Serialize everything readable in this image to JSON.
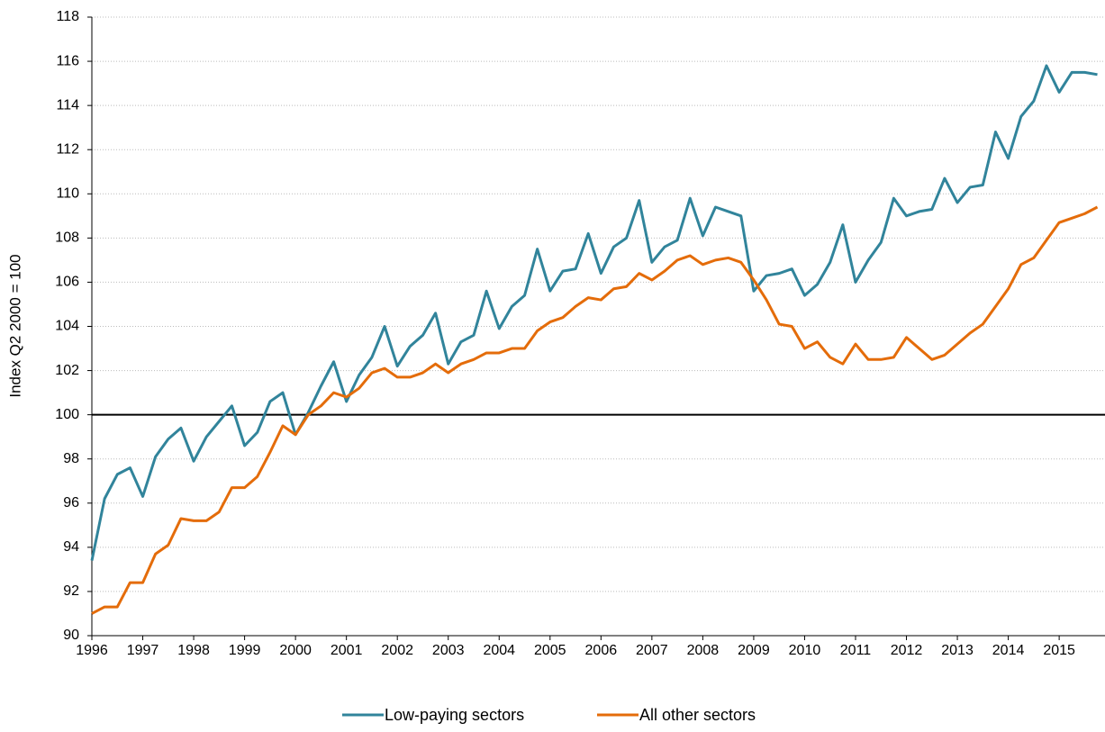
{
  "chart_data": {
    "type": "line",
    "y_label": "Index Q2 2000 = 100",
    "x": [
      1996,
      1996.25,
      1996.5,
      1996.75,
      1997,
      1997.25,
      1997.5,
      1997.75,
      1998,
      1998.25,
      1998.5,
      1998.75,
      1999,
      1999.25,
      1999.5,
      1999.75,
      2000,
      2000.25,
      2000.5,
      2000.75,
      2001,
      2001.25,
      2001.5,
      2001.75,
      2002,
      2002.25,
      2002.5,
      2002.75,
      2003,
      2003.25,
      2003.5,
      2003.75,
      2004,
      2004.25,
      2004.5,
      2004.75,
      2005,
      2005.25,
      2005.5,
      2005.75,
      2006,
      2006.25,
      2006.5,
      2006.75,
      2007,
      2007.25,
      2007.5,
      2007.75,
      2008,
      2008.25,
      2008.5,
      2008.75,
      2009,
      2009.25,
      2009.5,
      2009.75,
      2010,
      2010.25,
      2010.5,
      2010.75,
      2011,
      2011.25,
      2011.5,
      2011.75,
      2012,
      2012.25,
      2012.5,
      2012.75,
      2013,
      2013.25,
      2013.5,
      2013.75,
      2014,
      2014.25,
      2014.5,
      2014.75,
      2015,
      2015.25,
      2015.5,
      2015.75
    ],
    "series": [
      {
        "name": "Low-paying sectors",
        "color": "#31849b",
        "values": [
          93.4,
          96.2,
          97.3,
          97.6,
          96.3,
          98.1,
          98.9,
          99.4,
          97.9,
          99.0,
          99.7,
          100.4,
          98.6,
          99.2,
          100.6,
          101.0,
          99.1,
          100.1,
          101.3,
          102.4,
          100.6,
          101.8,
          102.6,
          104.0,
          102.2,
          103.1,
          103.6,
          104.6,
          102.3,
          103.3,
          103.6,
          105.6,
          103.9,
          104.9,
          105.4,
          107.5,
          105.6,
          106.5,
          106.6,
          108.2,
          106.4,
          107.6,
          108.0,
          109.7,
          106.9,
          107.6,
          107.9,
          109.8,
          108.1,
          109.4,
          109.2,
          109.0,
          105.6,
          106.3,
          106.4,
          106.6,
          105.4,
          105.9,
          106.9,
          108.6,
          106.0,
          107.0,
          107.8,
          109.8,
          109.0,
          109.2,
          109.3,
          110.7,
          109.6,
          110.3,
          110.4,
          112.8,
          111.6,
          113.5,
          114.2,
          115.8,
          114.6,
          115.5,
          115.5,
          115.4
        ]
      },
      {
        "name": "All other sectors",
        "color": "#e46c0a",
        "values": [
          91.0,
          91.3,
          91.3,
          92.4,
          92.4,
          93.7,
          94.1,
          95.3,
          95.2,
          95.2,
          95.6,
          96.7,
          96.7,
          97.2,
          98.3,
          99.5,
          99.1,
          100.0,
          100.4,
          101.0,
          100.8,
          101.2,
          101.9,
          102.1,
          101.7,
          101.7,
          101.9,
          102.3,
          101.9,
          102.3,
          102.5,
          102.8,
          102.8,
          103.0,
          103.0,
          103.8,
          104.2,
          104.4,
          104.9,
          105.3,
          105.2,
          105.7,
          105.8,
          106.4,
          106.1,
          106.5,
          107.0,
          107.2,
          106.8,
          107.0,
          107.1,
          106.9,
          106.1,
          105.2,
          104.1,
          104.0,
          103.0,
          103.3,
          102.6,
          102.3,
          103.2,
          102.5,
          102.5,
          102.6,
          103.5,
          103.0,
          102.5,
          102.7,
          103.2,
          103.7,
          104.1,
          104.9,
          105.7,
          106.8,
          107.1,
          107.9,
          108.7,
          108.9,
          109.1,
          109.4
        ]
      }
    ],
    "xlim": [
      1996,
      2015.9
    ],
    "xticks": [
      1996,
      1997,
      1998,
      1999,
      2000,
      2001,
      2002,
      2003,
      2004,
      2005,
      2006,
      2007,
      2008,
      2009,
      2010,
      2011,
      2012,
      2013,
      2014,
      2015
    ],
    "ylim": [
      90,
      118
    ],
    "yticks": [
      90,
      92,
      94,
      96,
      98,
      100,
      102,
      104,
      106,
      108,
      110,
      112,
      114,
      116,
      118
    ],
    "reference_line": 100,
    "grid": true,
    "legend": "bottom"
  }
}
